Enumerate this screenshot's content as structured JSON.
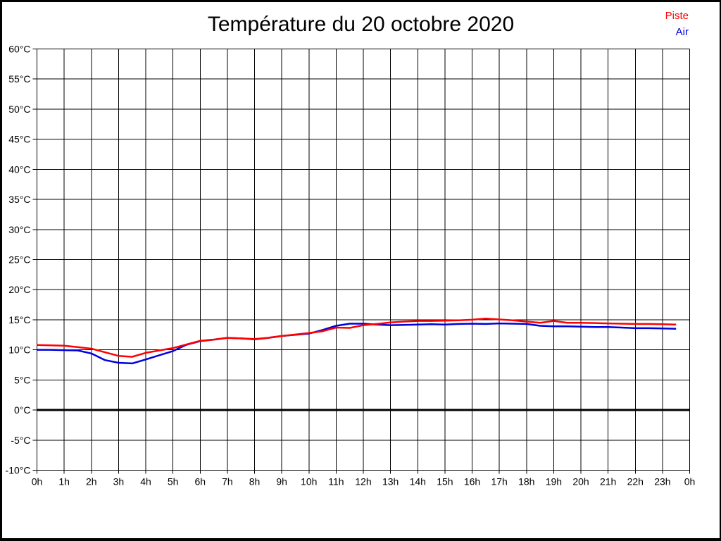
{
  "window": {
    "title": "Température du 20 octobre 2020"
  },
  "legend": {
    "items": [
      {
        "id": "piste",
        "label": "Piste",
        "color": "#ff0000"
      },
      {
        "id": "air",
        "label": "Air",
        "color": "#0000dd"
      }
    ]
  },
  "chart_data": {
    "type": "line",
    "title": "Température du 20 octobre 2020",
    "xlabel": "",
    "ylabel": "",
    "xlim": [
      0,
      24
    ],
    "ylim": [
      -10,
      60
    ],
    "grid": true,
    "grid_color": "#000000",
    "background": "#ffffff",
    "legend_position": "top-right-outside",
    "x_tick_values": [
      0,
      1,
      2,
      3,
      4,
      5,
      6,
      7,
      8,
      9,
      10,
      11,
      12,
      13,
      14,
      15,
      16,
      17,
      18,
      19,
      20,
      21,
      22,
      23,
      24
    ],
    "x_tick_labels": [
      "0h",
      "1h",
      "2h",
      "3h",
      "4h",
      "5h",
      "6h",
      "7h",
      "8h",
      "9h",
      "10h",
      "11h",
      "12h",
      "13h",
      "14h",
      "15h",
      "16h",
      "17h",
      "18h",
      "19h",
      "20h",
      "21h",
      "22h",
      "23h",
      "0h"
    ],
    "y_tick_values": [
      60,
      55,
      50,
      45,
      40,
      35,
      30,
      25,
      20,
      15,
      10,
      5,
      0,
      -5,
      -10
    ],
    "y_tick_labels": [
      "60°C",
      "55°C",
      "50°C",
      "45°C",
      "40°C",
      "35°C",
      "30°C",
      "25°C",
      "20°C",
      "15°C",
      "10°C",
      "5°C",
      "0°C",
      "-5°C",
      "-10°C"
    ],
    "zero_line": {
      "value": 0,
      "width": 3,
      "color": "#000000"
    },
    "x": [
      0,
      0.5,
      1,
      1.5,
      2,
      2.5,
      3,
      3.5,
      4,
      4.5,
      5,
      5.5,
      6,
      6.5,
      7,
      7.5,
      8,
      8.5,
      9,
      9.5,
      10,
      10.5,
      11,
      11.5,
      12,
      12.5,
      13,
      13.5,
      14,
      14.5,
      15,
      15.5,
      16,
      16.5,
      17,
      17.5,
      18,
      18.5,
      19,
      19.5,
      20,
      20.5,
      21,
      21.5,
      22,
      22.5,
      23,
      23.5
    ],
    "series": [
      {
        "name": "Piste",
        "color": "#ff0000",
        "values": [
          10.8,
          10.75,
          10.7,
          10.45,
          10.2,
          9.6,
          9.0,
          8.85,
          9.5,
          9.9,
          10.3,
          10.9,
          11.5,
          11.7,
          12.0,
          11.9,
          11.8,
          12.0,
          12.3,
          12.55,
          12.8,
          13.1,
          13.7,
          13.65,
          14.1,
          14.3,
          14.55,
          14.7,
          14.8,
          14.8,
          14.85,
          14.9,
          15.0,
          15.2,
          15.05,
          14.9,
          14.7,
          14.5,
          14.8,
          14.5,
          14.5,
          14.45,
          14.4,
          14.35,
          14.3,
          14.3,
          14.25,
          14.2
        ]
      },
      {
        "name": "Air",
        "color": "#0000dd",
        "values": [
          10.0,
          10.0,
          9.95,
          9.9,
          9.4,
          8.3,
          7.85,
          7.75,
          8.4,
          9.1,
          9.8,
          10.85,
          11.45,
          11.7,
          12.0,
          11.9,
          11.75,
          12.0,
          12.3,
          12.5,
          12.7,
          13.3,
          14.0,
          14.35,
          14.35,
          14.2,
          14.1,
          14.15,
          14.2,
          14.25,
          14.2,
          14.3,
          14.35,
          14.3,
          14.4,
          14.35,
          14.3,
          14.0,
          13.9,
          13.9,
          13.85,
          13.8,
          13.8,
          13.7,
          13.6,
          13.6,
          13.55,
          13.5
        ]
      }
    ]
  }
}
